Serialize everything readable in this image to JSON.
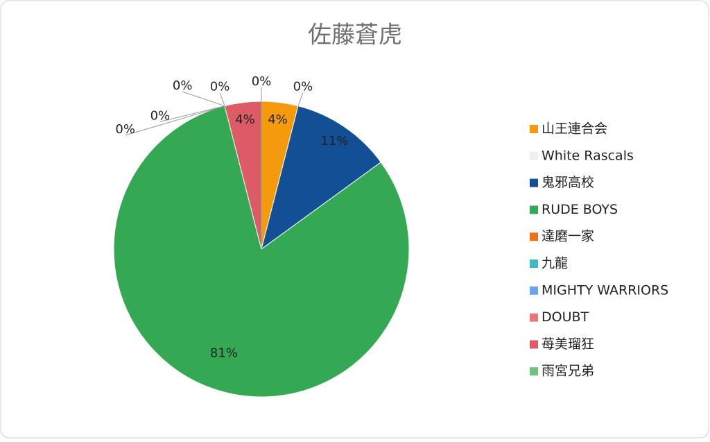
{
  "chart_data": {
    "type": "pie",
    "title": "佐藤蒼虎",
    "categories": [
      "山王連合会",
      "White Rascals",
      "鬼邪高校",
      "RUDE BOYS",
      "達磨一家",
      "九龍",
      "MIGHTY WARRIORS",
      "DOUBT",
      "苺美瑠狂",
      "雨宮兄弟"
    ],
    "values": [
      4,
      0,
      11,
      81,
      0,
      0,
      0,
      0,
      4,
      0
    ],
    "value_labels": [
      "4%",
      "0%",
      "11%",
      "81%",
      "0%",
      "0%",
      "0%",
      "0%",
      "4%",
      "0%"
    ],
    "colors": [
      "#f59a0c",
      "#efefef",
      "#134f94",
      "#34a853",
      "#ee7218",
      "#3fbac4",
      "#6aa4e8",
      "#e8777a",
      "#dc5b66",
      "#73c083"
    ],
    "legend": "right"
  }
}
